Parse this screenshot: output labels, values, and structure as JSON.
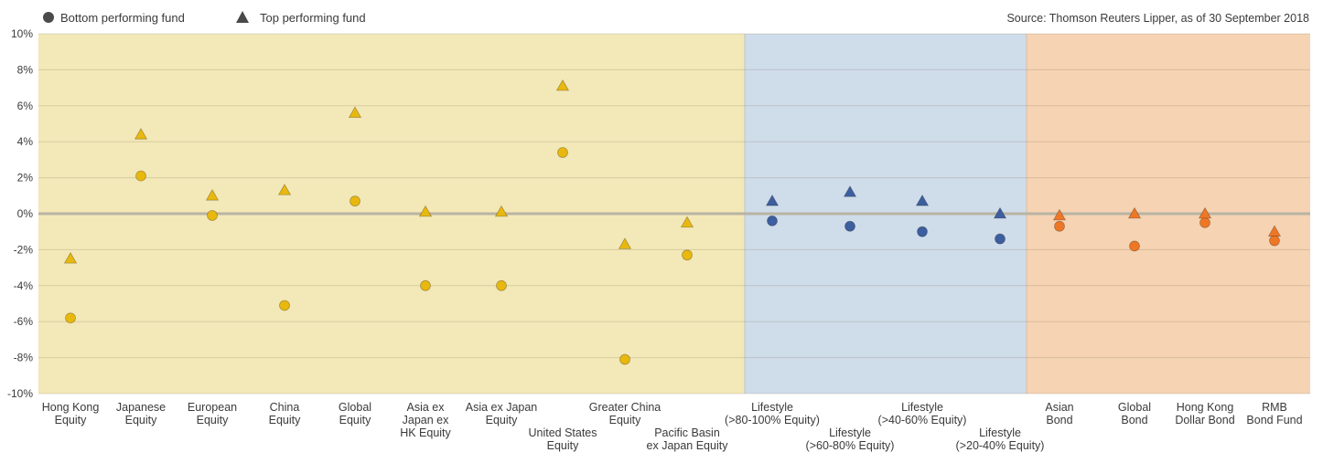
{
  "chart_data": {
    "type": "scatter",
    "source": "Source: Thomson Reuters Lipper, as of 30 September 2018",
    "ylim": [
      -10,
      10
    ],
    "yticks": [
      "10%",
      "8%",
      "6%",
      "4%",
      "2%",
      "0%",
      "-2%",
      "-4%",
      "-6%",
      "-8%",
      "-10%"
    ],
    "ytick_values": [
      10,
      8,
      6,
      4,
      2,
      0,
      -2,
      -4,
      -6,
      -8,
      -10
    ],
    "grid": true,
    "legend_position": "top-left",
    "legend": {
      "bottom": "Bottom performing fund",
      "top": "Top performing fund"
    },
    "colors": {
      "equity_marker": "#e8b80f",
      "equity_bg": "#f3e8b7",
      "lifestyle_marker": "#3d5fa0",
      "lifestyle_bg": "#cfdcea",
      "bond_marker": "#ee7726",
      "bond_bg": "#f5d3b3",
      "zero_line": "#b8b4a4",
      "grid": "#d9d0a3",
      "legend_marker": "#4a4a4a"
    },
    "categories": [
      {
        "label": [
          "Hong Kong",
          "Equity"
        ],
        "group": "equity",
        "bottom": -5.8,
        "top": -2.5
      },
      {
        "label": [
          "Japanese",
          "Equity"
        ],
        "group": "equity",
        "bottom": 2.1,
        "top": 4.4
      },
      {
        "label": [
          "European",
          "Equity"
        ],
        "group": "equity",
        "bottom": -0.1,
        "top": 1.0
      },
      {
        "label": [
          "China",
          "Equity"
        ],
        "group": "equity",
        "bottom": -5.1,
        "top": 1.3
      },
      {
        "label": [
          "Global",
          "Equity"
        ],
        "group": "equity",
        "bottom": 0.7,
        "top": 5.6
      },
      {
        "label": [
          "Asia ex",
          "Japan ex",
          "HK Equity"
        ],
        "group": "equity",
        "bottom": -4.0,
        "top": 0.1
      },
      {
        "label": [
          "Asia ex Japan",
          "Equity"
        ],
        "group": "equity",
        "bottom": -4.0,
        "top": 0.1
      },
      {
        "label": [
          "United States",
          "Equity"
        ],
        "group": "equity",
        "bottom": 3.4,
        "top": 7.1
      },
      {
        "label": [
          "Greater China",
          "Equity"
        ],
        "group": "equity",
        "bottom": -8.1,
        "top": -1.7
      },
      {
        "label": [
          "Pacific Basin",
          "ex Japan Equity"
        ],
        "group": "equity",
        "bottom": -2.3,
        "top": -0.5
      },
      {
        "label": [
          "Lifestyle",
          "(>80-100% Equity)"
        ],
        "group": "lifestyle",
        "bottom": -0.4,
        "top": 0.7
      },
      {
        "label": [
          "Lifestyle",
          "(>60-80% Equity)"
        ],
        "group": "lifestyle",
        "bottom": -0.7,
        "top": 1.2
      },
      {
        "label": [
          "Lifestyle",
          "(>40-60% Equity)"
        ],
        "group": "lifestyle",
        "bottom": -1.0,
        "top": 0.7
      },
      {
        "label": [
          "Lifestyle",
          "(>20-40% Equity)"
        ],
        "group": "lifestyle",
        "bottom": -1.4,
        "top": 0.0
      },
      {
        "label": [
          "Asian",
          "Bond"
        ],
        "group": "bond",
        "bottom": -0.7,
        "top": -0.1
      },
      {
        "label": [
          "Global",
          "Bond"
        ],
        "group": "bond",
        "bottom": -1.8,
        "top": 0.0
      },
      {
        "label": [
          "Hong Kong",
          "Dollar Bond"
        ],
        "group": "bond",
        "bottom": -0.5,
        "top": 0.0
      },
      {
        "label": [
          "RMB",
          "Bond Fund"
        ],
        "group": "bond",
        "bottom": -1.5,
        "top": -1.0
      }
    ]
  }
}
